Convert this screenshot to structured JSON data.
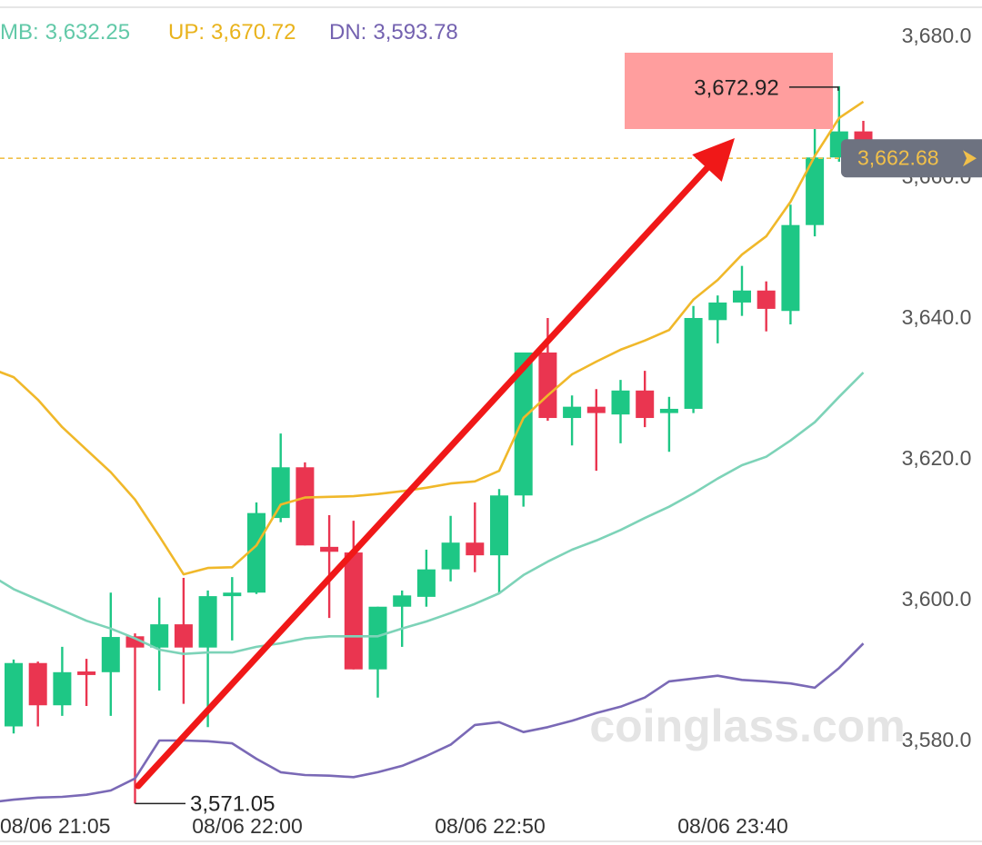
{
  "chart_data": {
    "type": "candlestick",
    "categories": [
      "08/06 21:05",
      null,
      null,
      null,
      null,
      null,
      null,
      null,
      null,
      null,
      null,
      "08/06 22:00",
      null,
      null,
      null,
      null,
      null,
      null,
      null,
      null,
      null,
      "08/06 22:50",
      null,
      null,
      null,
      null,
      null,
      null,
      null,
      null,
      null,
      "08/06 23:40",
      null,
      null,
      null,
      null,
      null
    ],
    "ohlc": {
      "open": [
        null,
        3582,
        3591,
        3585,
        3589.8,
        3589.7,
        3594.8,
        3593.2,
        3596.5,
        3593.2,
        3600.5,
        3601,
        3611.6,
        3618.8,
        3607.5,
        3606.7,
        3590.1,
        3599,
        3600.4,
        3604.3,
        3608.1,
        3606.3,
        3614.8,
        3635.1,
        3625.8,
        3627.4,
        3626.3,
        3629.7,
        3626.5,
        3627.1,
        3639.7,
        3642.2,
        3643.9,
        3641,
        3653.2,
        3662.8,
        3666.5
      ],
      "high": [
        null,
        3591.5,
        3591.2,
        3593.3,
        3591.6,
        3601,
        3595.2,
        3600.3,
        3603.1,
        3601.3,
        3603.2,
        3613.8,
        3623.6,
        3619.5,
        3612,
        3611.2,
        3599,
        3601.3,
        3607.1,
        3611.9,
        3613.8,
        3615.7,
        3635.1,
        3640,
        3629,
        3629.9,
        3631.2,
        3632.5,
        3628.8,
        3641.7,
        3643.2,
        3647.4,
        3645.2,
        3656.1,
        3668,
        3672.92,
        3668
      ],
      "low": [
        null,
        3581,
        3582,
        3583.5,
        3584.9,
        3583.5,
        3571.05,
        3587.1,
        3585.2,
        3581.9,
        3594.2,
        3600.8,
        3611,
        3607.7,
        3597.4,
        3590.1,
        3586.1,
        3593.3,
        3599,
        3602.6,
        3603.9,
        3601,
        3613.2,
        3625.4,
        3621.9,
        3618.3,
        3622.2,
        3624.5,
        3621,
        3626.5,
        3636.4,
        3640.3,
        3638.1,
        3639.1,
        3651.6,
        3662.2,
        3662.2
      ],
      "close": [
        null,
        3591,
        3585,
        3589.7,
        3589.3,
        3594.7,
        3593.2,
        3596.5,
        3593.2,
        3600.5,
        3601,
        3612.3,
        3618.8,
        3607.7,
        3606.8,
        3590.1,
        3599,
        3600.6,
        3604.3,
        3608.1,
        3606.3,
        3614.8,
        3635.1,
        3625.8,
        3627.4,
        3626.5,
        3629.7,
        3625.8,
        3627.1,
        3640,
        3642.2,
        3643.9,
        3641.3,
        3653.2,
        3662.8,
        3666.5,
        3662.68
      ],
      "up_color": "#1ec785",
      "down_color": "#ea3550"
    },
    "series": [
      {
        "name": "MB:",
        "last_label": "3,632.25",
        "color": "#7dd3b8",
        "label_color": "#62c9a8",
        "values": [
          3603.6,
          3601.5,
          3600,
          3598.5,
          3597,
          3595.9,
          3594.5,
          3592.9,
          3592.3,
          3592.5,
          3592.5,
          3593.3,
          3593.8,
          3594.5,
          3594.8,
          3594.8,
          3594.8,
          3595.9,
          3596.9,
          3598.1,
          3599.4,
          3600.9,
          3603.5,
          3605.4,
          3607.1,
          3608.4,
          3609.9,
          3611.6,
          3613.2,
          3615.1,
          3617.2,
          3619.1,
          3620.3,
          3622.6,
          3625.2,
          3628.8,
          3632.25
        ]
      },
      {
        "name": "UP:",
        "last_label": "3,670.72",
        "color": "#f0b82a",
        "label_color": "#e9b31c",
        "values": [
          3632.9,
          3631.6,
          3628.4,
          3624.5,
          3621.3,
          3618.1,
          3614.2,
          3609,
          3603.6,
          3604.5,
          3604.6,
          3607.7,
          3613.5,
          3614.5,
          3614.6,
          3614.7,
          3615,
          3615.4,
          3615.9,
          3616.5,
          3616.8,
          3618.3,
          3625.8,
          3629,
          3632,
          3633.8,
          3635.5,
          3636.8,
          3638.3,
          3642.6,
          3645.4,
          3649,
          3651.6,
          3656.5,
          3663,
          3668.4,
          3670.72
        ]
      },
      {
        "name": "DN:",
        "last_label": "3,593.78",
        "color": "#7a69b6",
        "label_color": "#7462b0",
        "values": [
          3571.2,
          3571.6,
          3571.9,
          3572,
          3572.3,
          3572.9,
          3574.6,
          3580,
          3580,
          3579.9,
          3579.6,
          3577.4,
          3575.5,
          3575.1,
          3575,
          3574.8,
          3575.5,
          3576.4,
          3577.8,
          3579.4,
          3582.2,
          3582.6,
          3581.2,
          3581.9,
          3582.8,
          3583.9,
          3584.8,
          3586.1,
          3588.4,
          3588.8,
          3589.2,
          3588.6,
          3588.4,
          3588.1,
          3587.5,
          3590.3,
          3593.78
        ]
      }
    ],
    "ylim": [
      3569.03,
      3685.16
    ],
    "yticks": [
      {
        "value": 3580,
        "label": "3,580.0"
      },
      {
        "value": 3600,
        "label": "3,600.0"
      },
      {
        "value": 3620,
        "label": "3,620.0"
      },
      {
        "value": 3640,
        "label": "3,640.0"
      },
      {
        "value": 3660,
        "label": "3,660.0"
      },
      {
        "value": 3680,
        "label": "3,680.0"
      }
    ],
    "annotations": {
      "high": {
        "value": 3672.92,
        "label": "3,672.92"
      },
      "low": {
        "value": 3571.05,
        "label": "3,571.05"
      },
      "current_price": {
        "value": 3662.68,
        "label": "3,662.68",
        "color": "#f1c04a"
      }
    },
    "watermark": "coinglass.com"
  }
}
